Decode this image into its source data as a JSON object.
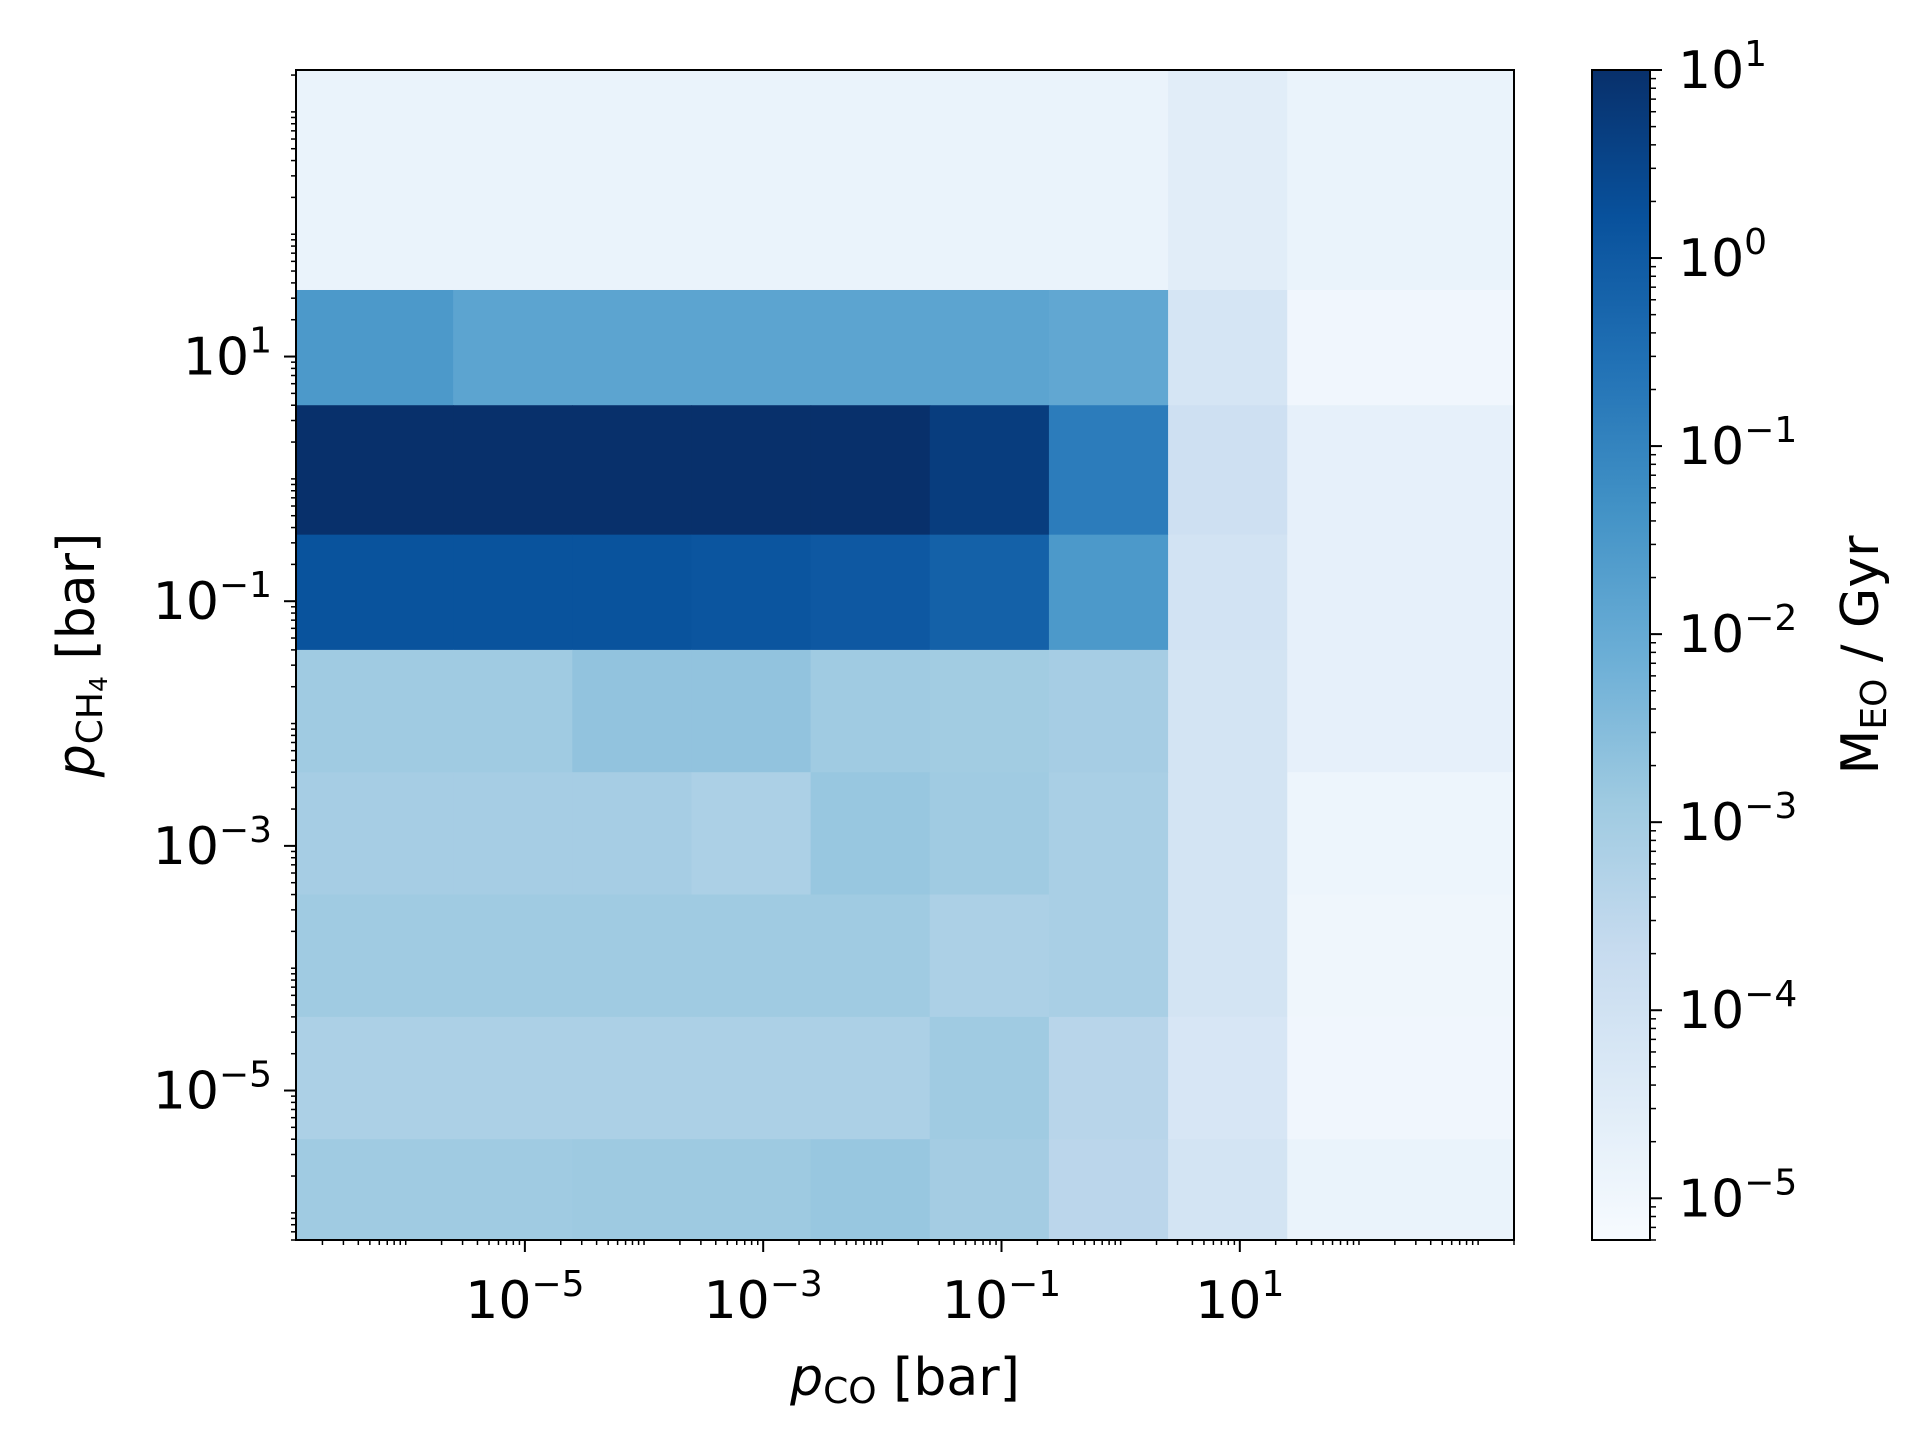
{
  "chart_data": {
    "type": "heatmap",
    "title": "",
    "xlabel": {
      "var": "p",
      "sub": "CO",
      "unit": " [bar]"
    },
    "ylabel": {
      "var": "p",
      "sub": "CH",
      "sub2": "4",
      "unit": " [bar]"
    },
    "colorbar_label": {
      "var": "M",
      "sub": "EO",
      "unit": " / Gyr"
    },
    "x_scale": "log",
    "y_scale": "log",
    "xlim": [
      1.2e-07,
      2000
    ],
    "ylim": [
      6e-07,
      2200
    ],
    "x_edges": [
      1.2e-07,
      2.5e-06,
      2.5e-05,
      0.00025,
      0.0025,
      0.025,
      0.25,
      2.5,
      25,
      2000
    ],
    "y_edges": [
      6e-07,
      4e-06,
      4e-05,
      0.0004,
      0.004,
      0.04,
      0.35,
      4,
      35,
      2200
    ],
    "x_ticks": [
      {
        "value": 1e-05,
        "base": "10",
        "exp": "−5"
      },
      {
        "value": 0.001,
        "base": "10",
        "exp": "−3"
      },
      {
        "value": 0.1,
        "base": "10",
        "exp": "−1"
      },
      {
        "value": 10,
        "base": "10",
        "exp": "1"
      }
    ],
    "y_ticks": [
      {
        "value": 1e-05,
        "base": "10",
        "exp": "−5"
      },
      {
        "value": 0.001,
        "base": "10",
        "exp": "−3"
      },
      {
        "value": 0.1,
        "base": "10",
        "exp": "−1"
      },
      {
        "value": 10,
        "base": "10",
        "exp": "1"
      }
    ],
    "colorbar": {
      "scale": "log",
      "range": [
        6e-06,
        10
      ],
      "colormap": "Blues",
      "ticks": [
        {
          "value": 1e-05,
          "base": "10",
          "exp": "−5"
        },
        {
          "value": 0.0001,
          "base": "10",
          "exp": "−4"
        },
        {
          "value": 0.001,
          "base": "10",
          "exp": "−3"
        },
        {
          "value": 0.01,
          "base": "10",
          "exp": "−2"
        },
        {
          "value": 0.1,
          "base": "10",
          "exp": "−1"
        },
        {
          "value": 1,
          "base": "10",
          "exp": "0"
        },
        {
          "value": 10,
          "base": "10",
          "exp": "1"
        }
      ]
    },
    "values_rows_top_to_bottom": [
      [
        1.5e-05,
        1.5e-05,
        1.5e-05,
        1.5e-05,
        1.5e-05,
        1.5e-05,
        1.5e-05,
        3e-05,
        1.5e-05
      ],
      [
        0.03,
        0.015,
        0.015,
        0.015,
        0.015,
        0.015,
        0.012,
        7e-05,
        1e-05
      ],
      [
        10,
        10,
        10,
        10,
        10,
        5,
        0.15,
        0.00012,
        2e-05
      ],
      [
        1.5,
        1.5,
        1.5,
        1.3,
        1.1,
        0.7,
        0.03,
        9e-05,
        2e-05
      ],
      [
        0.0012,
        0.0012,
        0.002,
        0.002,
        0.0012,
        0.0011,
        0.0009,
        8e-05,
        2e-05
      ],
      [
        0.0009,
        0.0009,
        0.0009,
        0.0007,
        0.0016,
        0.0012,
        0.0008,
        8e-05,
        1.2e-05
      ],
      [
        0.0012,
        0.0012,
        0.0012,
        0.0012,
        0.0012,
        0.0007,
        0.0008,
        8e-05,
        1.1e-05
      ],
      [
        0.0007,
        0.0007,
        0.0007,
        0.0007,
        0.0007,
        0.0012,
        0.0004,
        6e-05,
        1e-05
      ],
      [
        0.0012,
        0.0012,
        0.0013,
        0.0013,
        0.0016,
        0.001,
        0.00035,
        8e-05,
        1.5e-05
      ]
    ]
  }
}
